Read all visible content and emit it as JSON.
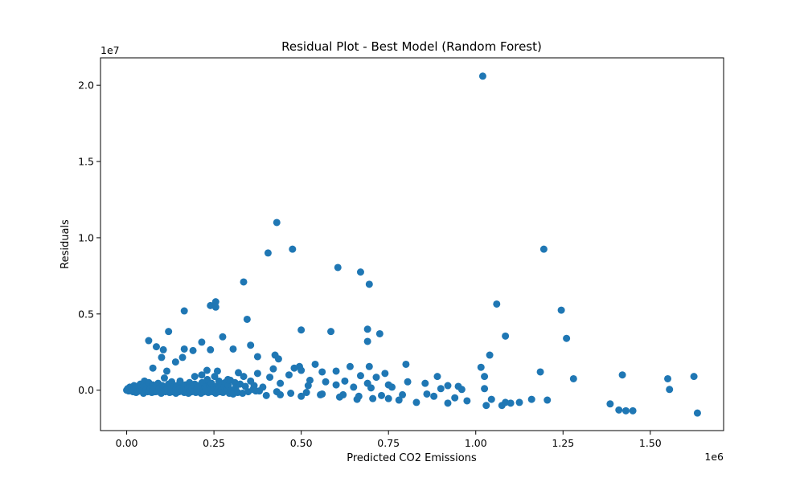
{
  "chart_data": {
    "type": "scatter",
    "title": "Residual Plot - Best Model (Random Forest)",
    "xlabel": "Predicted CO2 Emissions",
    "ylabel": "Residuals",
    "x_multiplier_label": "1e6",
    "y_multiplier_label": "1e7",
    "xlim": [
      -75000,
      1710000
    ],
    "ylim": [
      -2650000,
      21800000
    ],
    "x_scale": 1000000,
    "y_scale": 10000000,
    "x_ticks": [
      0.0,
      0.25,
      0.5,
      0.75,
      1.0,
      1.25,
      1.5
    ],
    "x_tick_labels": [
      "0.00",
      "0.25",
      "0.50",
      "0.75",
      "1.00",
      "1.25",
      "1.50"
    ],
    "y_ticks": [
      0.0,
      0.5,
      1.0,
      1.5,
      2.0
    ],
    "y_tick_labels": [
      "0.0",
      "0.5",
      "1.0",
      "1.5",
      "2.0"
    ],
    "grid": false,
    "marker_color": "#1f77b4",
    "series": [
      {
        "points": [
          [
            1020000,
            20600000
          ],
          [
            430000,
            11000000
          ],
          [
            475000,
            9250000
          ],
          [
            405000,
            9000000
          ],
          [
            1195000,
            9250000
          ],
          [
            605000,
            8050000
          ],
          [
            670000,
            7750000
          ],
          [
            695000,
            6950000
          ],
          [
            335000,
            7100000
          ],
          [
            255000,
            5800000
          ],
          [
            240000,
            5550000
          ],
          [
            255000,
            5450000
          ],
          [
            165000,
            5200000
          ],
          [
            345000,
            4650000
          ],
          [
            1060000,
            5650000
          ],
          [
            1245000,
            5250000
          ],
          [
            500000,
            3950000
          ],
          [
            585000,
            3850000
          ],
          [
            690000,
            4000000
          ],
          [
            725000,
            3700000
          ],
          [
            690000,
            3200000
          ],
          [
            120000,
            3850000
          ],
          [
            63000,
            3250000
          ],
          [
            275000,
            3500000
          ],
          [
            1085000,
            3550000
          ],
          [
            1260000,
            3400000
          ],
          [
            215000,
            3150000
          ],
          [
            85000,
            2850000
          ],
          [
            105000,
            2650000
          ],
          [
            165000,
            2700000
          ],
          [
            190000,
            2600000
          ],
          [
            240000,
            2650000
          ],
          [
            305000,
            2700000
          ],
          [
            355000,
            2950000
          ],
          [
            375000,
            2200000
          ],
          [
            425000,
            2300000
          ],
          [
            435000,
            2050000
          ],
          [
            1040000,
            2300000
          ],
          [
            100000,
            2150000
          ],
          [
            160000,
            2150000
          ],
          [
            140000,
            1850000
          ],
          [
            75000,
            1450000
          ],
          [
            480000,
            1450000
          ],
          [
            495000,
            1550000
          ],
          [
            540000,
            1700000
          ],
          [
            640000,
            1550000
          ],
          [
            695000,
            1550000
          ],
          [
            800000,
            1700000
          ],
          [
            1015000,
            1500000
          ],
          [
            1185000,
            1200000
          ],
          [
            115000,
            1250000
          ],
          [
            230000,
            1300000
          ],
          [
            260000,
            1250000
          ],
          [
            320000,
            1150000
          ],
          [
            375000,
            1100000
          ],
          [
            420000,
            1400000
          ],
          [
            500000,
            1300000
          ],
          [
            560000,
            1200000
          ],
          [
            600000,
            1250000
          ],
          [
            670000,
            950000
          ],
          [
            740000,
            1100000
          ],
          [
            890000,
            900000
          ],
          [
            1025000,
            900000
          ],
          [
            1280000,
            750000
          ],
          [
            1420000,
            1000000
          ],
          [
            1550000,
            750000
          ],
          [
            1625000,
            900000
          ],
          [
            1555000,
            50000
          ],
          [
            195000,
            900000
          ],
          [
            215000,
            1000000
          ],
          [
            290000,
            700000
          ],
          [
            335000,
            900000
          ],
          [
            410000,
            850000
          ],
          [
            465000,
            1000000
          ],
          [
            525000,
            650000
          ],
          [
            570000,
            550000
          ],
          [
            625000,
            600000
          ],
          [
            690000,
            450000
          ],
          [
            715000,
            850000
          ],
          [
            750000,
            350000
          ],
          [
            805000,
            550000
          ],
          [
            855000,
            450000
          ],
          [
            920000,
            300000
          ],
          [
            950000,
            250000
          ],
          [
            1025000,
            100000
          ],
          [
            150000,
            300000
          ],
          [
            180000,
            250000
          ],
          [
            230000,
            350000
          ],
          [
            270000,
            200000
          ],
          [
            310000,
            500000
          ],
          [
            365000,
            300000
          ],
          [
            390000,
            200000
          ],
          [
            440000,
            450000
          ],
          [
            520000,
            300000
          ],
          [
            600000,
            350000
          ],
          [
            650000,
            200000
          ],
          [
            700000,
            150000
          ],
          [
            760000,
            200000
          ],
          [
            900000,
            100000
          ],
          [
            960000,
            50000
          ],
          [
            380000,
            -50000
          ],
          [
            430000,
            -100000
          ],
          [
            470000,
            -200000
          ],
          [
            515000,
            -150000
          ],
          [
            555000,
            -300000
          ],
          [
            610000,
            -450000
          ],
          [
            660000,
            -600000
          ],
          [
            705000,
            -550000
          ],
          [
            750000,
            -550000
          ],
          [
            780000,
            -650000
          ],
          [
            830000,
            -800000
          ],
          [
            880000,
            -400000
          ],
          [
            920000,
            -850000
          ],
          [
            940000,
            -500000
          ],
          [
            975000,
            -700000
          ],
          [
            1030000,
            -1000000
          ],
          [
            1045000,
            -600000
          ],
          [
            1075000,
            -1000000
          ],
          [
            1085000,
            -800000
          ],
          [
            1100000,
            -850000
          ],
          [
            1125000,
            -800000
          ],
          [
            1160000,
            -600000
          ],
          [
            1205000,
            -650000
          ],
          [
            1385000,
            -900000
          ],
          [
            1410000,
            -1300000
          ],
          [
            1430000,
            -1350000
          ],
          [
            1450000,
            -1350000
          ],
          [
            1635000,
            -1500000
          ],
          [
            400000,
            -350000
          ],
          [
            440000,
            -300000
          ],
          [
            500000,
            -400000
          ],
          [
            560000,
            -250000
          ],
          [
            620000,
            -300000
          ],
          [
            665000,
            -400000
          ],
          [
            730000,
            -350000
          ],
          [
            790000,
            -300000
          ],
          [
            860000,
            -250000
          ],
          [
            3000,
            100000
          ],
          [
            6000,
            -50000
          ],
          [
            9000,
            200000
          ],
          [
            12000,
            0
          ],
          [
            15000,
            150000
          ],
          [
            18000,
            -100000
          ],
          [
            21000,
            300000
          ],
          [
            24000,
            50000
          ],
          [
            27000,
            -150000
          ],
          [
            30000,
            250000
          ],
          [
            33000,
            100000
          ],
          [
            36000,
            -50000
          ],
          [
            39000,
            400000
          ],
          [
            42000,
            0
          ],
          [
            45000,
            200000
          ],
          [
            48000,
            -200000
          ],
          [
            51000,
            600000
          ],
          [
            54000,
            100000
          ],
          [
            57000,
            300000
          ],
          [
            60000,
            -100000
          ],
          [
            63000,
            500000
          ],
          [
            66000,
            0
          ],
          [
            69000,
            200000
          ],
          [
            72000,
            -150000
          ],
          [
            75000,
            350000
          ],
          [
            78000,
            50000
          ],
          [
            81000,
            -100000
          ],
          [
            84000,
            250000
          ],
          [
            87000,
            0
          ],
          [
            90000,
            450000
          ],
          [
            93000,
            -50000
          ],
          [
            96000,
            150000
          ],
          [
            99000,
            -200000
          ],
          [
            102000,
            300000
          ],
          [
            105000,
            50000
          ],
          [
            108000,
            800000
          ],
          [
            111000,
            -100000
          ],
          [
            114000,
            200000
          ],
          [
            117000,
            0
          ],
          [
            120000,
            400000
          ],
          [
            123000,
            -150000
          ],
          [
            126000,
            100000
          ],
          [
            129000,
            550000
          ],
          [
            132000,
            -50000
          ],
          [
            135000,
            250000
          ],
          [
            138000,
            0
          ],
          [
            141000,
            -200000
          ],
          [
            144000,
            300000
          ],
          [
            147000,
            50000
          ],
          [
            150000,
            -100000
          ],
          [
            153000,
            600000
          ],
          [
            156000,
            150000
          ],
          [
            159000,
            -50000
          ],
          [
            162000,
            200000
          ],
          [
            165000,
            -150000
          ],
          [
            168000,
            350000
          ],
          [
            171000,
            0
          ],
          [
            174000,
            100000
          ],
          [
            177000,
            -200000
          ],
          [
            180000,
            500000
          ],
          [
            183000,
            50000
          ],
          [
            186000,
            -100000
          ],
          [
            189000,
            250000
          ],
          [
            192000,
            0
          ],
          [
            195000,
            400000
          ],
          [
            198000,
            -150000
          ],
          [
            201000,
            150000
          ],
          [
            204000,
            -50000
          ],
          [
            207000,
            300000
          ],
          [
            210000,
            0
          ],
          [
            213000,
            -200000
          ],
          [
            216000,
            500000
          ],
          [
            219000,
            100000
          ],
          [
            222000,
            -100000
          ],
          [
            225000,
            200000
          ],
          [
            228000,
            50000
          ],
          [
            231000,
            700000
          ],
          [
            234000,
            -150000
          ],
          [
            237000,
            300000
          ],
          [
            240000,
            0
          ],
          [
            243000,
            450000
          ],
          [
            246000,
            -100000
          ],
          [
            249000,
            150000
          ],
          [
            252000,
            900000
          ],
          [
            255000,
            -200000
          ],
          [
            258000,
            250000
          ],
          [
            261000,
            50000
          ],
          [
            264000,
            600000
          ],
          [
            267000,
            -100000
          ],
          [
            270000,
            350000
          ],
          [
            273000,
            0
          ],
          [
            276000,
            -150000
          ],
          [
            279000,
            200000
          ],
          [
            282000,
            500000
          ],
          [
            285000,
            -50000
          ],
          [
            288000,
            100000
          ],
          [
            291000,
            300000
          ],
          [
            294000,
            -200000
          ],
          [
            297000,
            650000
          ],
          [
            300000,
            0
          ],
          [
            305000,
            -250000
          ],
          [
            312000,
            150000
          ],
          [
            318000,
            -150000
          ],
          [
            325000,
            400000
          ],
          [
            332000,
            -200000
          ],
          [
            340000,
            250000
          ],
          [
            348000,
            -100000
          ],
          [
            355000,
            600000
          ],
          [
            362000,
            50000
          ],
          [
            370000,
            -50000
          ],
          [
            0,
            0
          ],
          [
            4000,
            50000
          ],
          [
            8000,
            -30000
          ],
          [
            14000,
            80000
          ],
          [
            20000,
            20000
          ],
          [
            26000,
            120000
          ],
          [
            32000,
            -80000
          ],
          [
            38000,
            60000
          ],
          [
            44000,
            -30000
          ],
          [
            50000,
            180000
          ],
          [
            56000,
            40000
          ],
          [
            62000,
            -60000
          ],
          [
            68000,
            90000
          ],
          [
            74000,
            20000
          ],
          [
            80000,
            130000
          ],
          [
            86000,
            -90000
          ],
          [
            92000,
            60000
          ],
          [
            98000,
            10000
          ],
          [
            104000,
            160000
          ],
          [
            110000,
            -40000
          ],
          [
            116000,
            70000
          ],
          [
            122000,
            30000
          ],
          [
            128000,
            -110000
          ],
          [
            134000,
            90000
          ],
          [
            140000,
            40000
          ],
          [
            146000,
            -20000
          ],
          [
            152000,
            110000
          ],
          [
            158000,
            -70000
          ],
          [
            164000,
            50000
          ],
          [
            170000,
            20000
          ],
          [
            176000,
            140000
          ],
          [
            182000,
            -30000
          ],
          [
            188000,
            80000
          ],
          [
            194000,
            -60000
          ],
          [
            200000,
            30000
          ]
        ]
      }
    ]
  }
}
